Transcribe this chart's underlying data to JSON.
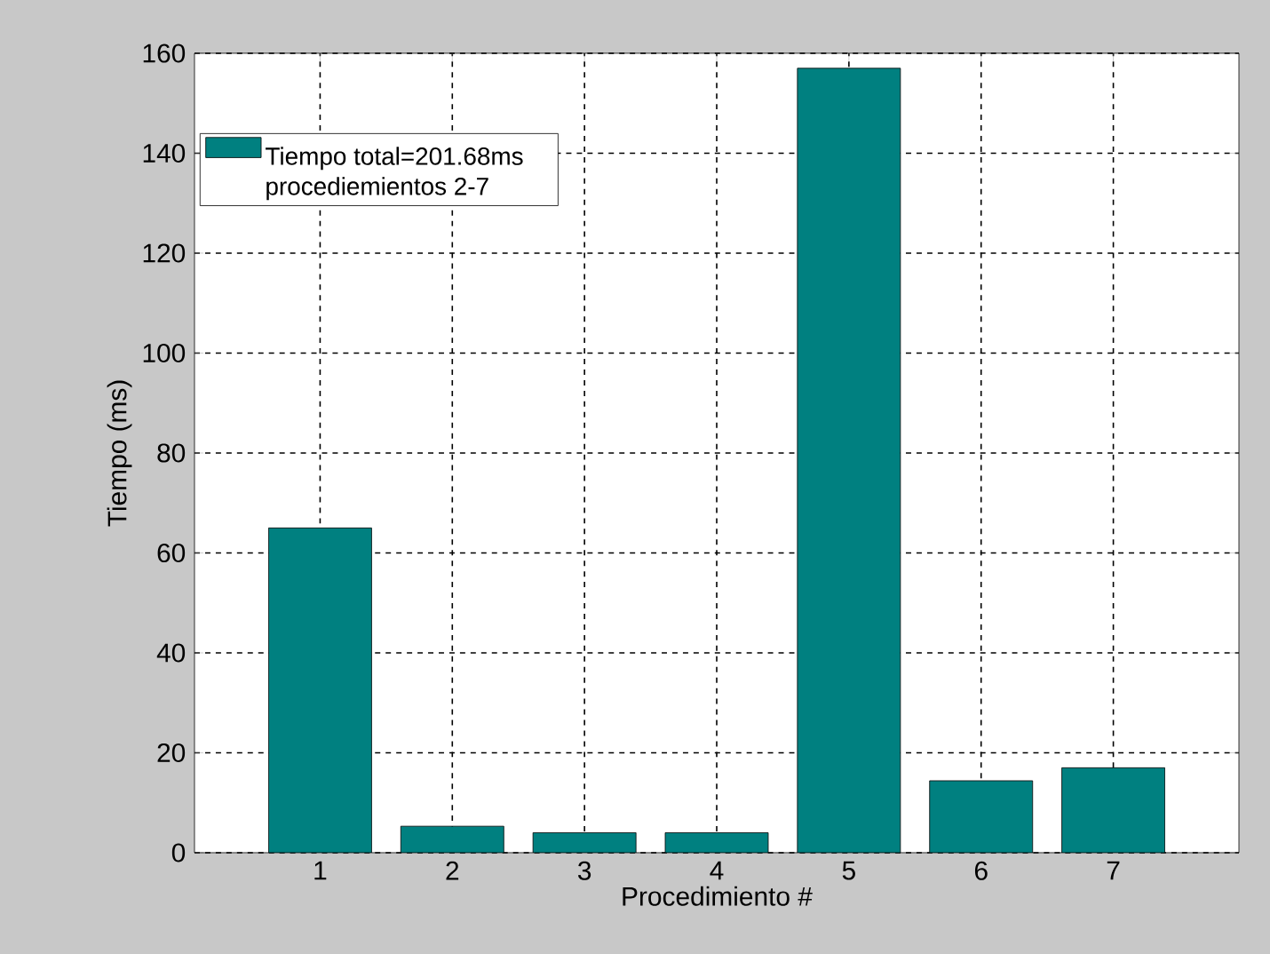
{
  "chart_data": {
    "type": "bar",
    "xlabel": "Procedimiento #",
    "ylabel": "Tiempo (ms)",
    "categories": [
      "1",
      "2",
      "3",
      "4",
      "5",
      "6",
      "7"
    ],
    "series": [
      {
        "name": "Tiempo total=201.68ms procediemientos 2-7",
        "color": "#008080",
        "values": [
          65,
          5.3,
          4,
          4,
          157,
          14.4,
          17
        ]
      }
    ],
    "ylim": [
      0,
      160
    ],
    "yticks": [
      0,
      20,
      40,
      60,
      80,
      100,
      120,
      140,
      160
    ],
    "grid": true,
    "legend": "top left"
  }
}
